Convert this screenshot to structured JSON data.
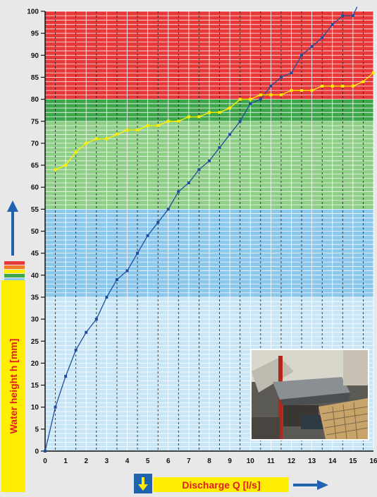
{
  "chart_data": {
    "type": "line",
    "title": "",
    "xlabel": "Discharge Q [l/s]",
    "ylabel": "Water height h [mm]",
    "xlim": [
      0,
      16
    ],
    "ylim": [
      0,
      100
    ],
    "x_ticks": [
      "0",
      "1",
      "2",
      "3",
      "4",
      "5",
      "6",
      "7",
      "8",
      "9",
      "10",
      "11",
      "12",
      "13",
      "14",
      "15",
      "16"
    ],
    "y_ticks": [
      "0",
      "5",
      "10",
      "15",
      "20",
      "25",
      "30",
      "35",
      "40",
      "45",
      "50",
      "55",
      "60",
      "65",
      "70",
      "75",
      "80",
      "85",
      "90",
      "95",
      "100"
    ],
    "grid": true,
    "zones": [
      {
        "from": 0,
        "to": 35,
        "color": "#c9e6f7"
      },
      {
        "from": 35,
        "to": 55,
        "color": "#8cc8ec"
      },
      {
        "from": 55,
        "to": 75,
        "color": "#8fce86"
      },
      {
        "from": 75,
        "to": 80,
        "color": "#3ea64b"
      },
      {
        "from": 80,
        "to": 100,
        "color": "#e8393a"
      }
    ],
    "series": [
      {
        "color": "#1f4e9e",
        "x": [
          0,
          0.5,
          1,
          1.5,
          2,
          2.5,
          3,
          3.5,
          4,
          4.5,
          5,
          5.5,
          6,
          6.5,
          7,
          7.5,
          8,
          8.5,
          9,
          9.5,
          10,
          10.5,
          11,
          11.5,
          12,
          12.5,
          13,
          13.5,
          14,
          14.5,
          15,
          15.2
        ],
        "y": [
          0,
          10,
          17,
          23,
          27,
          30,
          35,
          39,
          41,
          45,
          49,
          52,
          55,
          59,
          61,
          64,
          66,
          69,
          72,
          75,
          79,
          80,
          83,
          85,
          86,
          90,
          92,
          94,
          97,
          99,
          99,
          101
        ]
      },
      {
        "color": "#ffee00",
        "x": [
          0.5,
          1,
          1.5,
          2,
          2.5,
          3,
          3.5,
          4,
          4.5,
          5,
          5.5,
          6,
          6.5,
          7,
          7.5,
          8,
          8.5,
          9,
          9.5,
          10,
          10.5,
          11,
          11.5,
          12,
          12.5,
          13,
          13.5,
          14,
          14.5,
          15,
          15.5,
          16
        ],
        "y": [
          64,
          65,
          68,
          70,
          71,
          71,
          72,
          73,
          73,
          74,
          74,
          75,
          75,
          76,
          76,
          77,
          77,
          78,
          80,
          80,
          81,
          81,
          81,
          82,
          82,
          82,
          83,
          83,
          83,
          83,
          84,
          86
        ]
      }
    ]
  }
}
